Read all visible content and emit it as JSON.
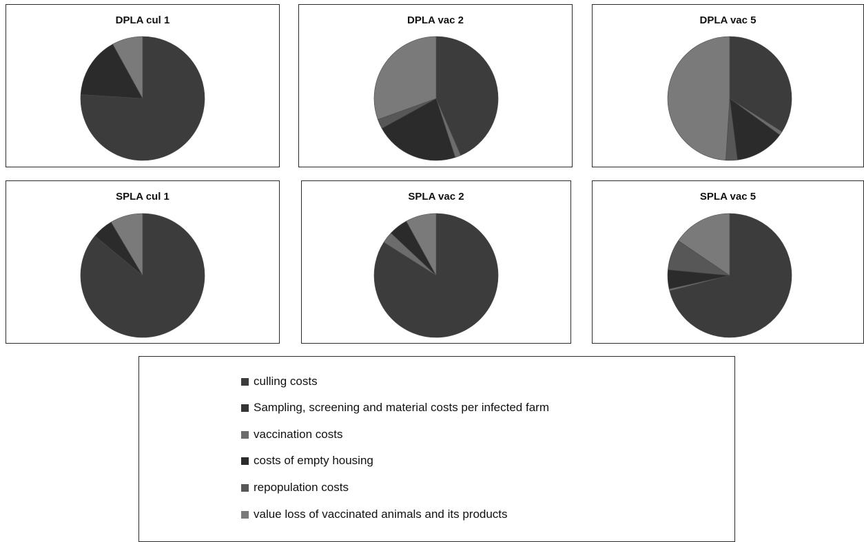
{
  "colors": {
    "culling": "#3c3c3c",
    "sampling": "#353535",
    "vaccination": "#6c6c6c",
    "empty_housing": "#2b2b2b",
    "repopulation": "#575757",
    "value_loss": "#7a7a7a"
  },
  "legend": {
    "items": [
      {
        "key": "culling",
        "label": "culling costs"
      },
      {
        "key": "sampling",
        "label": "Sampling, screening and material costs per infected farm"
      },
      {
        "key": "vaccination",
        "label": "vaccination costs"
      },
      {
        "key": "empty_housing",
        "label": "costs of empty housing"
      },
      {
        "key": "repopulation",
        "label": "repopulation costs"
      },
      {
        "key": "value_loss",
        "label": "value loss of vaccinated animals and its products"
      }
    ]
  },
  "chart_data": [
    {
      "type": "pie",
      "title": "DPLA cul 1",
      "categories": [
        "culling costs",
        "Sampling, screening and material costs per infected farm",
        "vaccination costs",
        "costs of empty housing",
        "repopulation costs",
        "value loss of vaccinated animals and its products"
      ],
      "values": [
        76,
        0,
        0,
        16,
        0,
        8
      ]
    },
    {
      "type": "pie",
      "title": "DPLA vac 2",
      "categories": [
        "culling costs",
        "Sampling, screening and material costs per infected farm",
        "vaccination costs",
        "costs of empty housing",
        "repopulation costs",
        "value loss of vaccinated animals and its products"
      ],
      "values": [
        43.5,
        0,
        1.5,
        22,
        2.5,
        30.5
      ]
    },
    {
      "type": "pie",
      "title": "DPLA vac 5",
      "categories": [
        "culling costs",
        "Sampling, screening and material costs per infected farm",
        "vaccination costs",
        "costs of empty housing",
        "repopulation costs",
        "value loss of vaccinated animals and its products"
      ],
      "values": [
        34,
        0,
        1,
        13,
        3,
        49
      ]
    },
    {
      "type": "pie",
      "title": "SPLA cul 1",
      "categories": [
        "culling costs",
        "Sampling, screening and material costs per infected farm",
        "vaccination costs",
        "costs of empty housing",
        "repopulation costs",
        "value loss of vaccinated animals and its products"
      ],
      "values": [
        86,
        0,
        0,
        5.5,
        0,
        8.5
      ]
    },
    {
      "type": "pie",
      "title": "SPLA vac 2",
      "categories": [
        "culling costs",
        "Sampling, screening and material costs per infected farm",
        "vaccination costs",
        "costs of empty housing",
        "repopulation costs",
        "value loss of vaccinated animals and its products"
      ],
      "values": [
        84,
        0,
        3,
        5,
        0,
        8
      ]
    },
    {
      "type": "pie",
      "title": "SPLA vac 5",
      "categories": [
        "culling costs",
        "Sampling, screening and material costs per infected farm",
        "vaccination costs",
        "costs of empty housing",
        "repopulation costs",
        "value loss of vaccinated animals and its products"
      ],
      "values": [
        71,
        0,
        0.5,
        5,
        8,
        15.5
      ]
    }
  ]
}
